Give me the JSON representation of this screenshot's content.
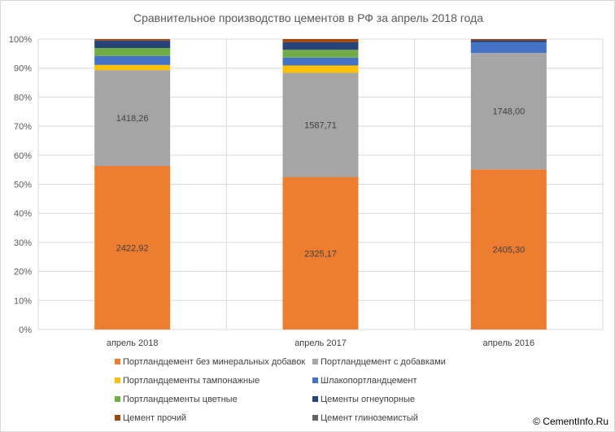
{
  "chart_data": {
    "type": "bar",
    "stacked": true,
    "percent_stacked": true,
    "title": "Сравнительное производство цементов в РФ за апрель 2018 года",
    "xlabel": "",
    "ylabel": "",
    "ylim": [
      0,
      100
    ],
    "y_ticks": [
      "0%",
      "10%",
      "20%",
      "30%",
      "40%",
      "50%",
      "60%",
      "70%",
      "80%",
      "90%",
      "100%"
    ],
    "categories": [
      "апрель 2018",
      "апрель 2017",
      "апрель 2016"
    ],
    "grid": true,
    "legend_position": "bottom",
    "series": [
      {
        "name": "Портландцемент без минеральных добавок",
        "color": "#ED7D31",
        "values": [
          56.3,
          52.5,
          55.1
        ],
        "labels": [
          "2422,92",
          "2325,17",
          "2405,30"
        ]
      },
      {
        "name": "Портландцемент с добавками",
        "color": "#A5A5A5",
        "values": [
          33.0,
          35.9,
          40.1
        ],
        "labels": [
          "1418,26",
          "1587,71",
          "1748,00"
        ]
      },
      {
        "name": "Портландцементы тампонажные",
        "color": "#FFC000",
        "values": [
          1.8,
          2.5,
          0.0
        ],
        "labels": [
          "",
          "",
          ""
        ]
      },
      {
        "name": "Шлакопортландцемент",
        "color": "#4472C4",
        "values": [
          3.1,
          2.7,
          3.7
        ],
        "labels": [
          "",
          "",
          ""
        ]
      },
      {
        "name": "Портландцементы цветные",
        "color": "#70AD47",
        "values": [
          2.7,
          2.7,
          0.0
        ],
        "labels": [
          "",
          "",
          ""
        ]
      },
      {
        "name": "Цементы огнеупорные",
        "color": "#264478",
        "values": [
          2.6,
          2.6,
          0.7
        ],
        "labels": [
          "",
          "",
          ""
        ]
      },
      {
        "name": "Цемент прочий",
        "color": "#9E480E",
        "values": [
          0.5,
          1.1,
          0.4
        ],
        "labels": [
          "",
          "",
          ""
        ]
      },
      {
        "name": "Цемент глиноземистый",
        "color": "#636363",
        "values": [
          0.0,
          0.0,
          0.0
        ],
        "labels": [
          "",
          "",
          ""
        ]
      }
    ]
  },
  "watermark": "© CementInfo.Ru"
}
